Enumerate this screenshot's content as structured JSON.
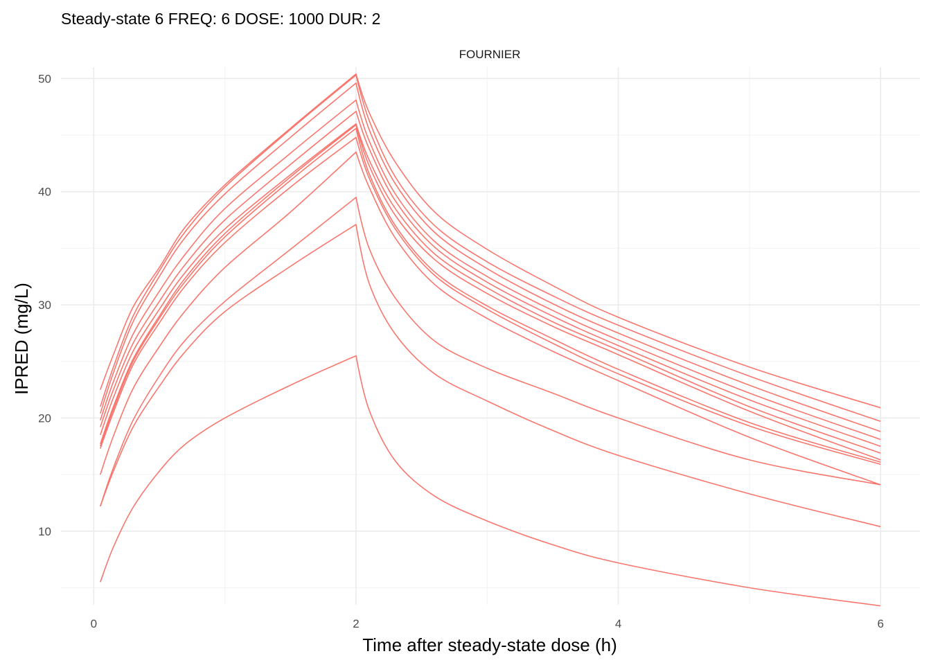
{
  "chart_data": {
    "type": "line",
    "title": "Steady-state 6 FREQ: 6 DOSE: 1000 DUR: 2",
    "facet_label": "FOURNIER",
    "xlabel": "Time after steady-state dose (h)",
    "ylabel": "IPRED (mg/L)",
    "xlim": [
      -0.25,
      6.3
    ],
    "ylim": [
      3.5,
      51.0
    ],
    "x_ticks": [
      0,
      2,
      4,
      6
    ],
    "x_tick_labels": [
      "0",
      "2",
      "4",
      "6"
    ],
    "y_ticks": [
      10,
      20,
      30,
      40,
      50
    ],
    "y_tick_labels": [
      "10",
      "20",
      "30",
      "40",
      "50"
    ],
    "grid": true,
    "legend": "none",
    "line_color": "#F8766D",
    "series": [
      {
        "points": [
          [
            0.05,
            22.5
          ],
          [
            0.15,
            25.6
          ],
          [
            0.3,
            29.8
          ],
          [
            0.5,
            33.3
          ],
          [
            0.7,
            36.9
          ],
          [
            1.0,
            40.6
          ],
          [
            1.5,
            45.6
          ],
          [
            2.0,
            50.4
          ],
          [
            2.1,
            47.0
          ],
          [
            2.3,
            42.6
          ],
          [
            2.6,
            38.2
          ],
          [
            3.0,
            34.9
          ],
          [
            3.5,
            31.7
          ],
          [
            4.0,
            28.9
          ],
          [
            5.0,
            24.5
          ],
          [
            6.0,
            20.9
          ]
        ]
      },
      {
        "points": [
          [
            0.05,
            21.0
          ],
          [
            0.15,
            24.5
          ],
          [
            0.3,
            29.0
          ],
          [
            0.5,
            33.0
          ],
          [
            0.7,
            36.5
          ],
          [
            1.0,
            40.4
          ],
          [
            1.5,
            45.5
          ],
          [
            2.0,
            50.3
          ],
          [
            2.1,
            46.3
          ],
          [
            2.3,
            41.3
          ],
          [
            2.6,
            37.0
          ],
          [
            3.0,
            33.8
          ],
          [
            3.5,
            30.8
          ],
          [
            4.0,
            28.2
          ],
          [
            5.0,
            23.7
          ],
          [
            6.0,
            19.7
          ]
        ]
      },
      {
        "points": [
          [
            0.05,
            20.4
          ],
          [
            0.15,
            24.0
          ],
          [
            0.3,
            28.5
          ],
          [
            0.5,
            32.5
          ],
          [
            0.7,
            36.0
          ],
          [
            1.0,
            39.8
          ],
          [
            1.5,
            44.8
          ],
          [
            2.0,
            49.6
          ],
          [
            2.1,
            45.5
          ],
          [
            2.3,
            40.7
          ],
          [
            2.6,
            36.4
          ],
          [
            3.0,
            33.2
          ],
          [
            3.5,
            30.1
          ],
          [
            4.0,
            27.5
          ],
          [
            5.0,
            22.9
          ],
          [
            6.0,
            18.8
          ]
        ]
      },
      {
        "points": [
          [
            0.05,
            19.8
          ],
          [
            0.15,
            23.2
          ],
          [
            0.3,
            27.4
          ],
          [
            0.5,
            31.2
          ],
          [
            0.7,
            34.5
          ],
          [
            1.0,
            38.5
          ],
          [
            1.5,
            43.4
          ],
          [
            2.0,
            48.1
          ],
          [
            2.1,
            44.5
          ],
          [
            2.3,
            39.8
          ],
          [
            2.6,
            35.6
          ],
          [
            3.0,
            32.5
          ],
          [
            3.5,
            29.5
          ],
          [
            4.0,
            26.9
          ],
          [
            5.0,
            22.2
          ],
          [
            6.0,
            18.1
          ]
        ]
      },
      {
        "points": [
          [
            0.05,
            19.2
          ],
          [
            0.15,
            22.5
          ],
          [
            0.3,
            26.6
          ],
          [
            0.5,
            30.3
          ],
          [
            0.7,
            33.6
          ],
          [
            1.0,
            37.5
          ],
          [
            1.5,
            42.4
          ],
          [
            2.0,
            47.1
          ],
          [
            2.1,
            43.8
          ],
          [
            2.3,
            39.2
          ],
          [
            2.6,
            35.1
          ],
          [
            3.0,
            32.0
          ],
          [
            3.5,
            29.0
          ],
          [
            4.0,
            26.4
          ],
          [
            5.0,
            21.6
          ],
          [
            6.0,
            17.5
          ]
        ]
      },
      {
        "points": [
          [
            0.05,
            18.5
          ],
          [
            0.15,
            21.8
          ],
          [
            0.3,
            25.9
          ],
          [
            0.5,
            29.6
          ],
          [
            0.7,
            32.9
          ],
          [
            1.0,
            36.7
          ],
          [
            1.5,
            41.5
          ],
          [
            2.0,
            46.0
          ],
          [
            2.1,
            42.8
          ],
          [
            2.3,
            38.5
          ],
          [
            2.6,
            34.5
          ],
          [
            3.0,
            31.5
          ],
          [
            3.5,
            28.5
          ],
          [
            4.0,
            26.0
          ],
          [
            5.0,
            21.0
          ],
          [
            6.0,
            16.9
          ]
        ]
      },
      {
        "points": [
          [
            0.05,
            17.7
          ],
          [
            0.15,
            21.0
          ],
          [
            0.3,
            25.2
          ],
          [
            0.5,
            29.0
          ],
          [
            0.7,
            32.4
          ],
          [
            1.0,
            36.3
          ],
          [
            1.5,
            41.3
          ],
          [
            2.0,
            45.9
          ],
          [
            2.1,
            42.3
          ],
          [
            2.3,
            37.9
          ],
          [
            2.6,
            34.0
          ],
          [
            3.0,
            31.0
          ],
          [
            3.5,
            28.1
          ],
          [
            4.0,
            25.6
          ],
          [
            5.0,
            20.6
          ],
          [
            6.0,
            16.3
          ]
        ]
      },
      {
        "points": [
          [
            0.05,
            17.5
          ],
          [
            0.15,
            20.8
          ],
          [
            0.3,
            25.0
          ],
          [
            0.5,
            28.8
          ],
          [
            0.7,
            32.1
          ],
          [
            1.0,
            36.0
          ],
          [
            1.5,
            41.0
          ],
          [
            2.0,
            45.6
          ],
          [
            2.1,
            41.6
          ],
          [
            2.3,
            37.0
          ],
          [
            2.6,
            32.9
          ],
          [
            3.0,
            29.9
          ],
          [
            3.5,
            27.0
          ],
          [
            4.0,
            24.3
          ],
          [
            5.0,
            19.6
          ],
          [
            6.0,
            16.1
          ]
        ]
      },
      {
        "points": [
          [
            0.05,
            17.3
          ],
          [
            0.15,
            20.5
          ],
          [
            0.3,
            24.7
          ],
          [
            0.5,
            28.4
          ],
          [
            0.7,
            31.7
          ],
          [
            1.0,
            35.5
          ],
          [
            1.5,
            40.4
          ],
          [
            2.0,
            44.8
          ],
          [
            2.1,
            41.2
          ],
          [
            2.3,
            36.7
          ],
          [
            2.6,
            32.6
          ],
          [
            3.0,
            29.6
          ],
          [
            3.5,
            26.6
          ],
          [
            4.0,
            23.9
          ],
          [
            5.0,
            19.3
          ],
          [
            6.0,
            15.9
          ]
        ]
      },
      {
        "points": [
          [
            0.05,
            15.0
          ],
          [
            0.15,
            18.4
          ],
          [
            0.3,
            22.6
          ],
          [
            0.5,
            26.3
          ],
          [
            0.7,
            29.5
          ],
          [
            1.0,
            33.3
          ],
          [
            1.5,
            38.2
          ],
          [
            2.0,
            43.5
          ],
          [
            2.1,
            40.4
          ],
          [
            2.3,
            35.9
          ],
          [
            2.6,
            31.8
          ],
          [
            3.0,
            28.8
          ],
          [
            3.5,
            25.9
          ],
          [
            4.0,
            23.3
          ],
          [
            5.0,
            18.3
          ],
          [
            6.0,
            14.1
          ]
        ]
      },
      {
        "points": [
          [
            0.05,
            12.2
          ],
          [
            0.15,
            15.6
          ],
          [
            0.3,
            19.8
          ],
          [
            0.5,
            23.7
          ],
          [
            0.7,
            26.9
          ],
          [
            1.0,
            30.3
          ],
          [
            1.5,
            34.9
          ],
          [
            2.0,
            39.5
          ],
          [
            2.1,
            35.0
          ],
          [
            2.3,
            30.6
          ],
          [
            2.6,
            26.8
          ],
          [
            3.0,
            24.4
          ],
          [
            3.5,
            22.2
          ],
          [
            4.0,
            20.0
          ],
          [
            5.0,
            16.3
          ],
          [
            6.0,
            14.1
          ]
        ]
      },
      {
        "points": [
          [
            0.05,
            12.2
          ],
          [
            0.15,
            15.3
          ],
          [
            0.3,
            19.2
          ],
          [
            0.5,
            22.8
          ],
          [
            0.7,
            25.9
          ],
          [
            1.0,
            29.4
          ],
          [
            1.5,
            33.4
          ],
          [
            2.0,
            37.1
          ],
          [
            2.1,
            31.9
          ],
          [
            2.3,
            27.4
          ],
          [
            2.6,
            23.9
          ],
          [
            3.0,
            21.5
          ],
          [
            3.5,
            18.9
          ],
          [
            4.0,
            16.7
          ],
          [
            5.0,
            13.3
          ],
          [
            6.0,
            10.4
          ]
        ]
      },
      {
        "points": [
          [
            0.05,
            5.5
          ],
          [
            0.15,
            8.6
          ],
          [
            0.3,
            12.1
          ],
          [
            0.5,
            15.3
          ],
          [
            0.7,
            17.7
          ],
          [
            1.0,
            20.0
          ],
          [
            1.5,
            22.9
          ],
          [
            2.0,
            25.5
          ],
          [
            2.1,
            20.7
          ],
          [
            2.3,
            16.2
          ],
          [
            2.6,
            13.1
          ],
          [
            3.0,
            10.9
          ],
          [
            3.5,
            8.8
          ],
          [
            4.0,
            7.2
          ],
          [
            5.0,
            5.0
          ],
          [
            6.0,
            3.4
          ]
        ]
      }
    ]
  }
}
